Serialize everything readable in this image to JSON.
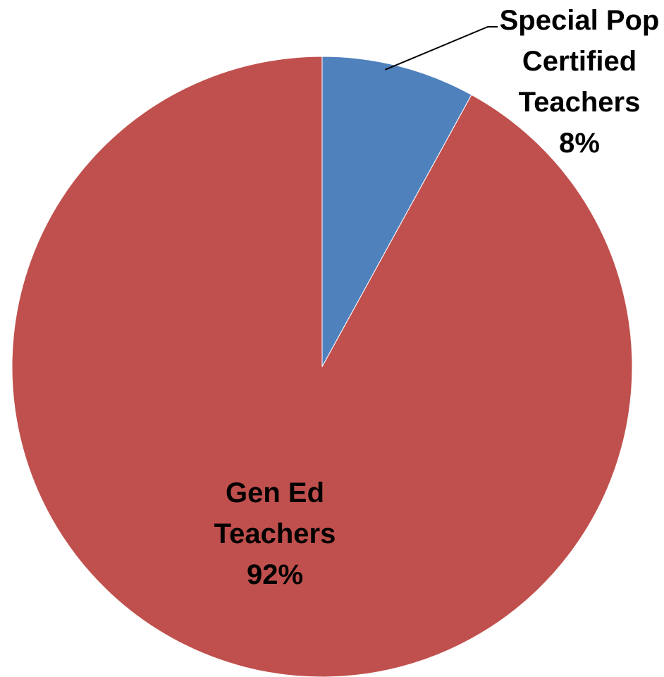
{
  "chart_data": {
    "type": "pie",
    "title": "",
    "slices": [
      {
        "name": "Special Pop Certified Teachers",
        "label_lines": [
          "Special Pop",
          "Certified",
          "Teachers"
        ],
        "value": 8,
        "value_label": "8%",
        "color": "#4F81BD"
      },
      {
        "name": "Gen Ed Teachers",
        "label_lines": [
          "Gen Ed",
          "Teachers"
        ],
        "value": 92,
        "value_label": "92%",
        "color": "#C0504D"
      }
    ],
    "start_angle": "12 o'clock",
    "direction": "clockwise",
    "legend": "none"
  }
}
